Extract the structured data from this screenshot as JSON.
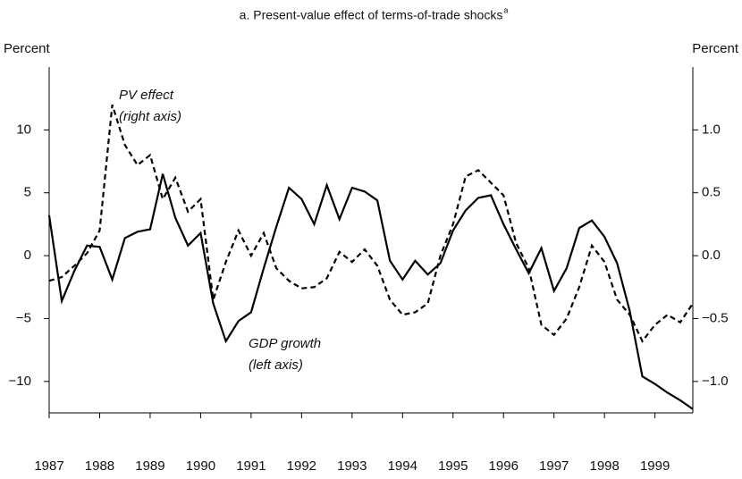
{
  "chart_data": {
    "type": "line",
    "title": "a. Present-value effect of terms-of-trade shocks",
    "title_superscript": "a",
    "y_label": "Percent",
    "y2_label": "Percent",
    "annotations": [
      {
        "lines": [
          "PV effect",
          "(right axis)"
        ],
        "series": 1
      },
      {
        "lines": [
          "GDP growth",
          "(left axis)"
        ],
        "series": 0
      }
    ],
    "x": [
      1987,
      1987.25,
      1987.5,
      1987.75,
      1988,
      1988.25,
      1988.5,
      1988.75,
      1989,
      1989.25,
      1989.5,
      1989.75,
      1990,
      1990.25,
      1990.5,
      1990.75,
      1991,
      1991.25,
      1991.5,
      1991.75,
      1992,
      1992.25,
      1992.5,
      1992.75,
      1993,
      1993.25,
      1993.5,
      1993.75,
      1994,
      1994.25,
      1994.5,
      1994.75,
      1995,
      1995.25,
      1995.5,
      1995.75,
      1996,
      1996.25,
      1996.5,
      1996.75,
      1997,
      1997.25,
      1997.5,
      1997.75,
      1998,
      1998.25,
      1998.5,
      1998.75,
      1999,
      1999.25,
      1999.5,
      1999.75
    ],
    "xlim": [
      1987,
      1999.75
    ],
    "xticks": [
      1987,
      1988,
      1989,
      1990,
      1991,
      1992,
      1993,
      1994,
      1995,
      1996,
      1997,
      1998,
      1999
    ],
    "ylim": [
      -12.5,
      15
    ],
    "yticks": [
      {
        "value": -10,
        "label": "−10"
      },
      {
        "value": -5,
        "label": "−5"
      },
      0,
      5,
      10
    ],
    "y2lim": [
      -1.25,
      1.5
    ],
    "y2ticks": [
      {
        "value": -1,
        "label": "−1.0"
      },
      {
        "value": -0.5,
        "label": "−0.5"
      },
      {
        "value": 0,
        "label": "0.0"
      },
      0.5,
      {
        "value": 1,
        "label": "1.0"
      }
    ],
    "series": [
      {
        "name": "GDP growth",
        "color": "#000000",
        "dash": false,
        "values": [
          3.2,
          -3.6,
          -1.2,
          0.8,
          0.7,
          -1.9,
          1.4,
          1.9,
          2.1,
          6.5,
          3.0,
          0.8,
          1.8,
          -3.8,
          -6.8,
          -5.2,
          -4.5,
          -1.0,
          2.3,
          5.4,
          4.5,
          2.5,
          5.6,
          2.9,
          5.4,
          5.1,
          4.4,
          -0.4,
          -1.9,
          -0.4,
          -1.5,
          -0.6,
          2.0,
          3.6,
          4.6,
          4.8,
          2.5,
          0.5,
          -1.4,
          0.6,
          -2.8,
          -1.0,
          2.2,
          2.8,
          1.5,
          -0.6,
          -4.4,
          -9.6,
          -10.2,
          -10.9,
          -11.5,
          -12.2
        ]
      },
      {
        "name": "PV effect",
        "color": "#000000",
        "dash": true,
        "axis": "y2",
        "values": [
          -0.2,
          -0.17,
          -0.08,
          0.02,
          0.2,
          1.2,
          0.88,
          0.72,
          0.8,
          0.45,
          0.62,
          0.35,
          0.45,
          -0.35,
          -0.05,
          0.2,
          0.0,
          0.18,
          -0.1,
          -0.2,
          -0.26,
          -0.25,
          -0.18,
          0.03,
          -0.05,
          0.05,
          -0.08,
          -0.35,
          -0.47,
          -0.45,
          -0.38,
          0.0,
          0.25,
          0.63,
          0.68,
          0.58,
          0.48,
          0.1,
          -0.1,
          -0.55,
          -0.63,
          -0.5,
          -0.25,
          0.08,
          -0.05,
          -0.35,
          -0.47,
          -0.68,
          -0.55,
          -0.47,
          -0.53,
          -0.38
        ]
      }
    ]
  }
}
